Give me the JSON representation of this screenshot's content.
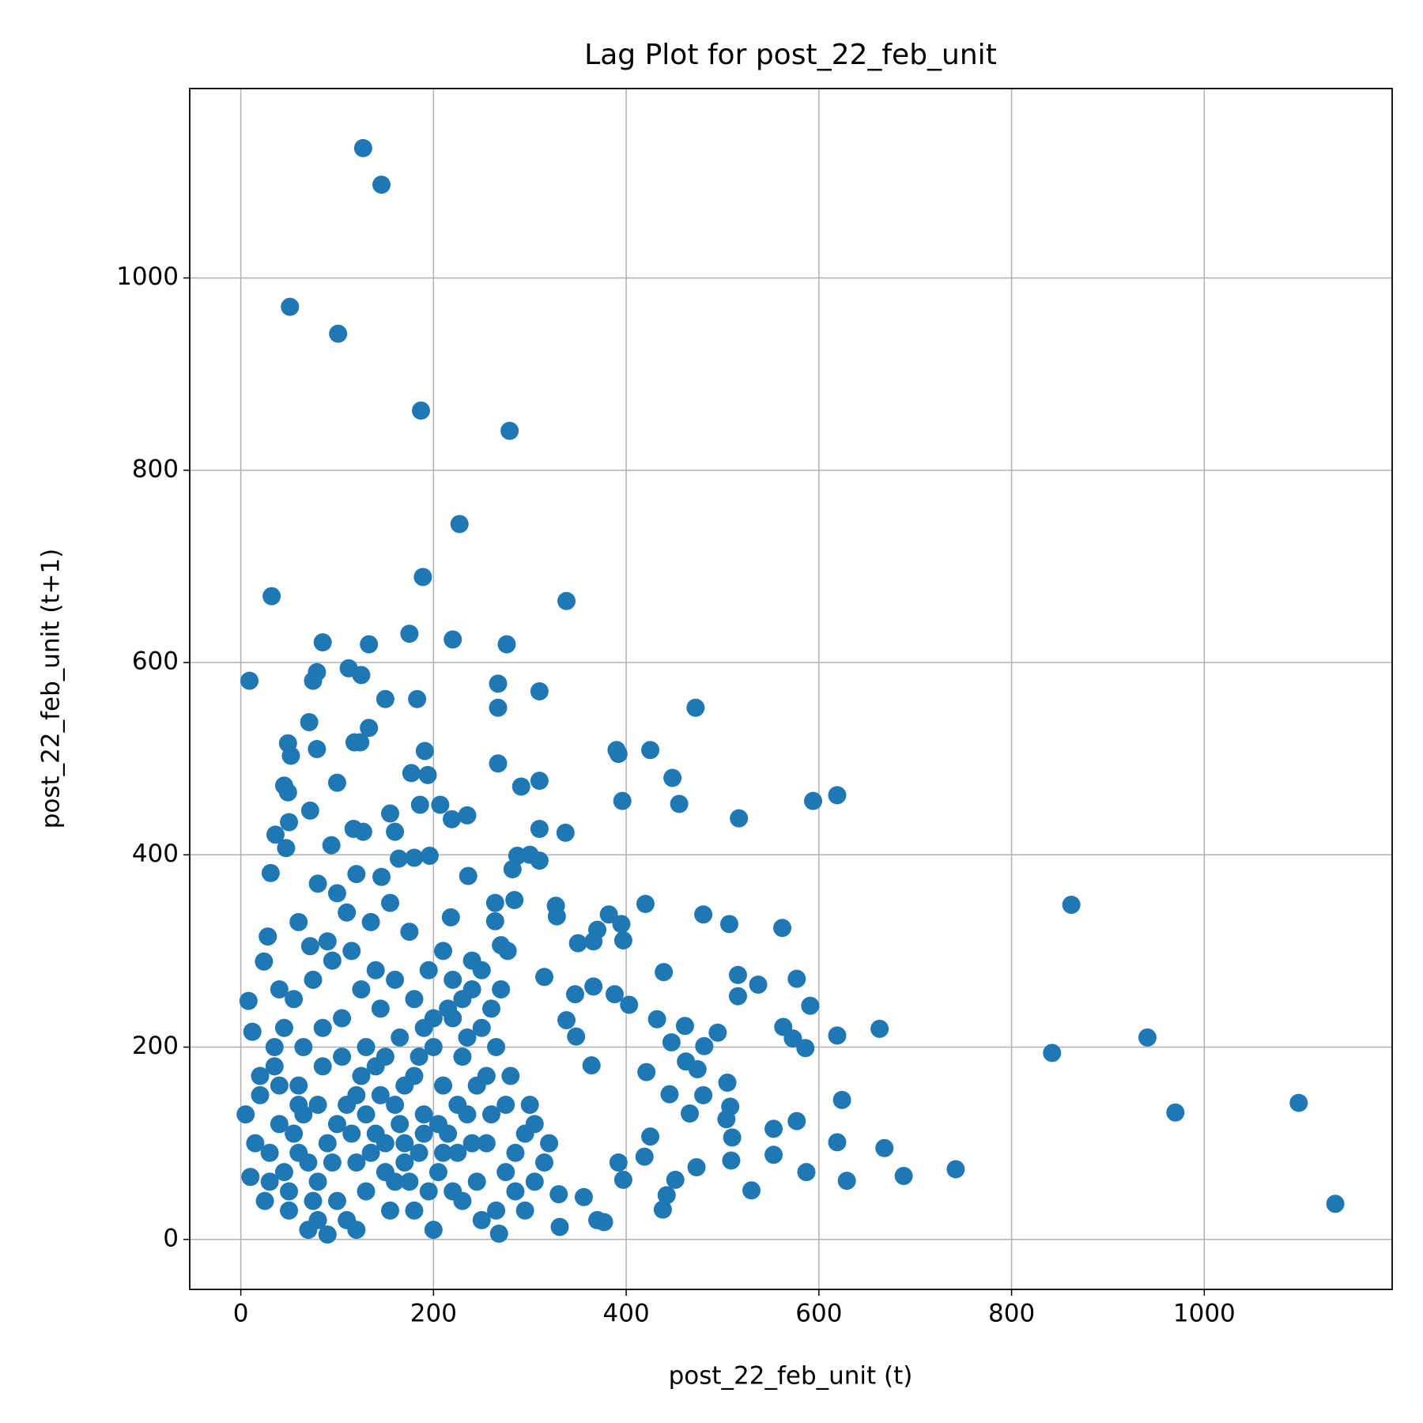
{
  "chart_data": {
    "type": "scatter",
    "title": "Lag Plot for post_22_feb_unit",
    "x_label": "post_22_feb_unit (t)",
    "y_label": "post_22_feb_unit (t+1)",
    "color": "#1f77b4",
    "grid": true,
    "xlim": [
      -53,
      1195
    ],
    "ylim": [
      -52,
      1197
    ],
    "xticks": [
      0,
      200,
      400,
      600,
      800,
      1000
    ],
    "yticks": [
      0,
      200,
      400,
      600,
      800,
      1000
    ],
    "x": [
      127,
      146,
      51,
      101,
      187,
      279,
      227,
      189,
      32,
      338,
      85,
      175,
      220,
      133,
      276,
      9,
      112,
      125,
      79,
      75,
      150,
      183,
      267,
      267,
      310,
      472,
      71,
      133,
      118,
      124,
      49,
      52,
      79,
      191,
      390,
      392,
      425,
      267,
      100,
      45,
      49,
      194,
      177,
      310,
      291,
      448,
      619,
      594,
      396,
      455,
      186,
      207,
      155,
      235,
      219,
      517,
      310,
      337,
      72,
      50,
      36,
      117,
      127,
      160,
      164,
      94,
      47,
      282,
      287,
      300,
      310,
      196,
      180,
      31,
      146,
      236,
      284,
      264,
      327,
      420,
      862,
      480,
      382,
      328,
      218,
      264,
      507,
      395,
      370,
      562,
      397,
      366,
      350,
      28,
      72,
      270,
      277,
      24,
      439,
      516,
      577,
      537,
      315,
      366,
      347,
      388,
      516,
      8,
      403,
      591,
      432,
      338,
      495,
      563,
      461,
      663,
      619,
      941,
      573,
      586,
      447,
      348,
      481,
      12,
      842,
      462,
      474,
      421,
      364,
      505,
      445,
      480,
      624,
      1098,
      970,
      577,
      466,
      508,
      425,
      504,
      553,
      619,
      668,
      553,
      510,
      509,
      419,
      473,
      392,
      587,
      742,
      688,
      629,
      451,
      397,
      530,
      442,
      356,
      330,
      438,
      370,
      377,
      331,
      268,
      1136,
      20,
      40,
      60,
      80,
      100,
      120,
      140,
      160,
      180,
      200,
      220,
      240,
      30,
      50,
      70,
      90,
      110,
      130,
      150,
      170,
      190,
      210,
      230,
      250,
      15,
      35,
      55,
      75,
      95,
      115,
      135,
      155,
      175,
      195,
      215,
      235,
      255,
      275,
      295,
      315,
      25,
      45,
      65,
      85,
      105,
      125,
      145,
      165,
      185,
      205,
      225,
      245,
      265,
      285,
      305,
      5,
      10,
      35,
      60,
      80,
      100,
      120,
      140,
      160,
      180,
      200,
      220,
      240,
      260,
      280,
      300,
      320,
      45,
      65,
      85,
      105,
      125,
      145,
      165,
      185,
      205,
      225,
      245,
      265,
      285,
      305,
      30,
      55,
      75,
      95,
      115,
      135,
      155,
      175,
      195,
      215,
      235,
      255,
      275,
      295,
      20,
      40,
      60,
      80,
      100,
      120,
      140,
      160,
      180,
      200,
      220,
      240,
      260,
      110,
      90,
      130,
      150,
      170,
      190,
      210,
      230,
      250,
      270,
      50,
      70,
      90,
      110,
      130,
      150,
      170,
      190,
      210,
      230,
      250,
      120,
      80,
      60,
      40
    ],
    "values": [
      1135,
      1097,
      970,
      942,
      862,
      841,
      744,
      689,
      669,
      664,
      621,
      630,
      624,
      619,
      619,
      581,
      594,
      587,
      590,
      581,
      562,
      562,
      578,
      553,
      570,
      553,
      538,
      532,
      517,
      517,
      516,
      503,
      510,
      508,
      509,
      505,
      509,
      495,
      475,
      472,
      465,
      483,
      485,
      477,
      471,
      480,
      462,
      456,
      456,
      453,
      452,
      452,
      443,
      441,
      437,
      438,
      427,
      423,
      446,
      434,
      421,
      427,
      424,
      424,
      396,
      410,
      407,
      385,
      399,
      400,
      394,
      399,
      397,
      381,
      377,
      378,
      353,
      350,
      347,
      349,
      348,
      338,
      338,
      336,
      335,
      331,
      328,
      328,
      322,
      324,
      311,
      310,
      308,
      315,
      305,
      306,
      300,
      289,
      278,
      275,
      271,
      265,
      273,
      263,
      255,
      255,
      253,
      248,
      244,
      243,
      229,
      228,
      215,
      221,
      222,
      219,
      212,
      210,
      209,
      199,
      205,
      211,
      201,
      216,
      194,
      185,
      177,
      174,
      181,
      163,
      151,
      150,
      145,
      142,
      132,
      123,
      131,
      138,
      107,
      125,
      115,
      101,
      95,
      88,
      106,
      82,
      86,
      75,
      80,
      70,
      73,
      66,
      61,
      62,
      62,
      51,
      46,
      44,
      47,
      31,
      20,
      18,
      13,
      6,
      37,
      150,
      120,
      90,
      60,
      40,
      80,
      110,
      140,
      170,
      200,
      230,
      260,
      60,
      30,
      10,
      5,
      20,
      50,
      70,
      100,
      130,
      160,
      190,
      220,
      100,
      200,
      250,
      270,
      290,
      300,
      330,
      350,
      320,
      280,
      240,
      210,
      170,
      140,
      110,
      80,
      40,
      70,
      130,
      180,
      230,
      260,
      240,
      210,
      190,
      120,
      90,
      60,
      30,
      50,
      120,
      130,
      65,
      180,
      160,
      140,
      120,
      150,
      180,
      60,
      30,
      10,
      50,
      100,
      130,
      170,
      140,
      100,
      220,
      200,
      220,
      190,
      170,
      150,
      120,
      90,
      70,
      140,
      160,
      200,
      90,
      60,
      90,
      110,
      40,
      80,
      110,
      90,
      30,
      60,
      50,
      110,
      130,
      100,
      70,
      30,
      170,
      260,
      330,
      370,
      360,
      380,
      280,
      270,
      250,
      230,
      270,
      290,
      240,
      340,
      310,
      200,
      190,
      160,
      220,
      300,
      250,
      280,
      260,
      50,
      80,
      100,
      140,
      130,
      100,
      80,
      110,
      90,
      40,
      20,
      10,
      20,
      140,
      160
    ]
  }
}
